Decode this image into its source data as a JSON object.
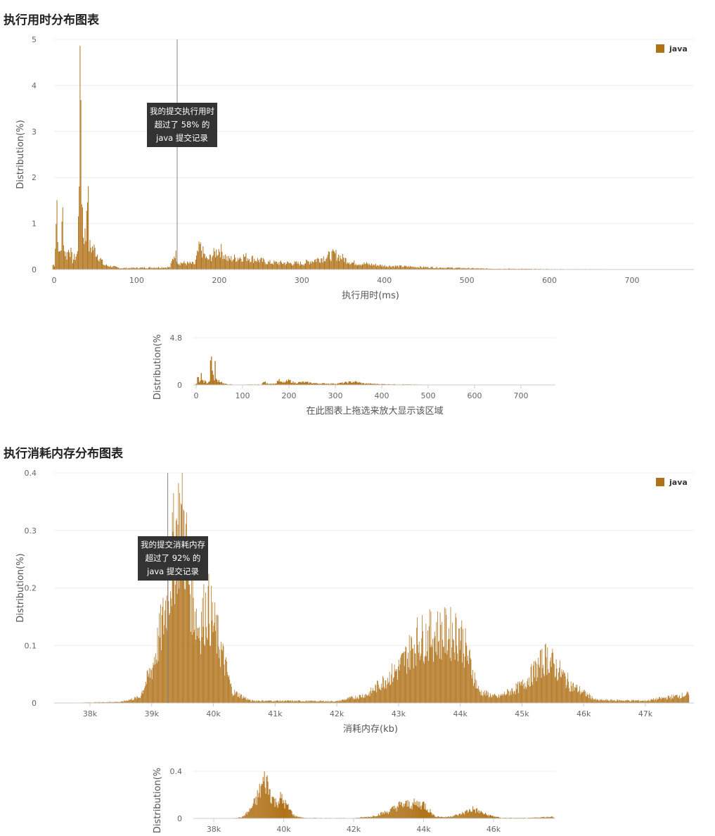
{
  "sections": {
    "time_title": "执行用时分布图表",
    "memory_title": "执行消耗内存分布图表"
  },
  "navigator_hint": "在此图表上拖选来放大显示该区域",
  "colors": {
    "bar": "#b07219",
    "grid": "#ebebeb",
    "marker": "#888888",
    "tooltip_bg": "#333333"
  },
  "chart_data": [
    {
      "id": "time",
      "type": "bar",
      "title": "执行用时分布图表",
      "xlabel": "执行用时(ms)",
      "ylabel": "Distribution(%)",
      "xlim": [
        -2,
        775
      ],
      "ylim": [
        0,
        5
      ],
      "bin": 1,
      "x_ticks": [
        "0",
        "100",
        "200",
        "300",
        "400",
        "500",
        "600",
        "700"
      ],
      "x_tick_values": [
        0,
        100,
        200,
        300,
        400,
        500,
        600,
        700
      ],
      "y_ticks": [
        "0",
        "1",
        "2",
        "3",
        "4",
        "5"
      ],
      "y_tick_values": [
        0,
        1,
        2,
        3,
        4,
        5
      ],
      "legend": {
        "label": "java",
        "position": "top-right"
      },
      "marker": {
        "x": 149,
        "tooltip": [
          "我的提交执行用时",
          "超过了 58% 的",
          "java 提交记录"
        ]
      },
      "envelope": [
        [
          0,
          0.1
        ],
        [
          3,
          1.5
        ],
        [
          5,
          0.3
        ],
        [
          8,
          0.5
        ],
        [
          10,
          1.2
        ],
        [
          12,
          0.4
        ],
        [
          15,
          0.3
        ],
        [
          18,
          0.5
        ],
        [
          22,
          0.2
        ],
        [
          28,
          0.35
        ],
        [
          31,
          3.5
        ],
        [
          32,
          3.85
        ],
        [
          33,
          1.8
        ],
        [
          35,
          0.8
        ],
        [
          38,
          0.7
        ],
        [
          40,
          2.2
        ],
        [
          42,
          0.5
        ],
        [
          48,
          0.45
        ],
        [
          55,
          0.25
        ],
        [
          60,
          0.1
        ],
        [
          80,
          0.03
        ],
        [
          140,
          0.05
        ],
        [
          146,
          0.37
        ],
        [
          150,
          0.15
        ],
        [
          170,
          0.12
        ],
        [
          176,
          0.5
        ],
        [
          185,
          0.2
        ],
        [
          200,
          0.45
        ],
        [
          210,
          0.22
        ],
        [
          230,
          0.28
        ],
        [
          260,
          0.15
        ],
        [
          300,
          0.13
        ],
        [
          340,
          0.33
        ],
        [
          360,
          0.15
        ],
        [
          400,
          0.08
        ],
        [
          450,
          0.05
        ],
        [
          520,
          0.02
        ],
        [
          600,
          0.01
        ],
        [
          700,
          0.005
        ],
        [
          760,
          0
        ]
      ],
      "navigator": {
        "ylabel": "Distribution(%",
        "y_ticks": [
          "0",
          "4.8"
        ],
        "y_tick_values": [
          0,
          4.8
        ],
        "x_ticks": [
          "0",
          "100",
          "200",
          "300",
          "400",
          "500",
          "600",
          "700"
        ],
        "x_tick_values": [
          0,
          100,
          200,
          300,
          400,
          500,
          600,
          700
        ]
      }
    },
    {
      "id": "memory",
      "type": "bar",
      "title": "执行消耗内存分布图表",
      "xlabel": "消耗内存(kb)",
      "ylabel": "Distribution(%)",
      "xlim": [
        37420,
        47780
      ],
      "ylim": [
        0,
        0.4
      ],
      "bin": 10,
      "x_ticks": [
        "38k",
        "39k",
        "40k",
        "41k",
        "42k",
        "43k",
        "44k",
        "45k",
        "46k",
        "47k"
      ],
      "x_tick_values": [
        38000,
        39000,
        40000,
        41000,
        42000,
        43000,
        44000,
        45000,
        46000,
        47000
      ],
      "y_ticks": [
        "0",
        "0.1",
        "0.2",
        "0.3",
        "0.4"
      ],
      "y_tick_values": [
        0,
        0.1,
        0.2,
        0.3,
        0.4
      ],
      "legend": {
        "label": "java",
        "position": "top-right"
      },
      "marker": {
        "x": 39260,
        "tooltip": [
          "我的提交消耗内存",
          "超过了 92% 的",
          "java 提交记录"
        ]
      },
      "envelope": [
        [
          37500,
          0
        ],
        [
          38500,
          0.002
        ],
        [
          38800,
          0.01
        ],
        [
          39000,
          0.06
        ],
        [
          39200,
          0.15
        ],
        [
          39400,
          0.3
        ],
        [
          39500,
          0.32
        ],
        [
          39600,
          0.22
        ],
        [
          39750,
          0.13
        ],
        [
          39900,
          0.17
        ],
        [
          40100,
          0.1
        ],
        [
          40300,
          0.02
        ],
        [
          40600,
          0.004
        ],
        [
          42000,
          0.003
        ],
        [
          42500,
          0.015
        ],
        [
          43000,
          0.06
        ],
        [
          43300,
          0.11
        ],
        [
          43600,
          0.12
        ],
        [
          44000,
          0.12
        ],
        [
          44300,
          0.02
        ],
        [
          44600,
          0.01
        ],
        [
          45000,
          0.03
        ],
        [
          45400,
          0.08
        ],
        [
          45800,
          0.03
        ],
        [
          46200,
          0.005
        ],
        [
          47000,
          0.004
        ],
        [
          47700,
          0.015
        ]
      ],
      "navigator": {
        "ylabel": "Distribution(%",
        "y_ticks": [
          "0",
          "0.4"
        ],
        "y_tick_values": [
          0,
          0.4
        ],
        "x_ticks": [
          "38k",
          "40k",
          "42k",
          "44k",
          "46k"
        ],
        "x_tick_values": [
          38000,
          40000,
          42000,
          44000,
          46000
        ]
      }
    }
  ]
}
